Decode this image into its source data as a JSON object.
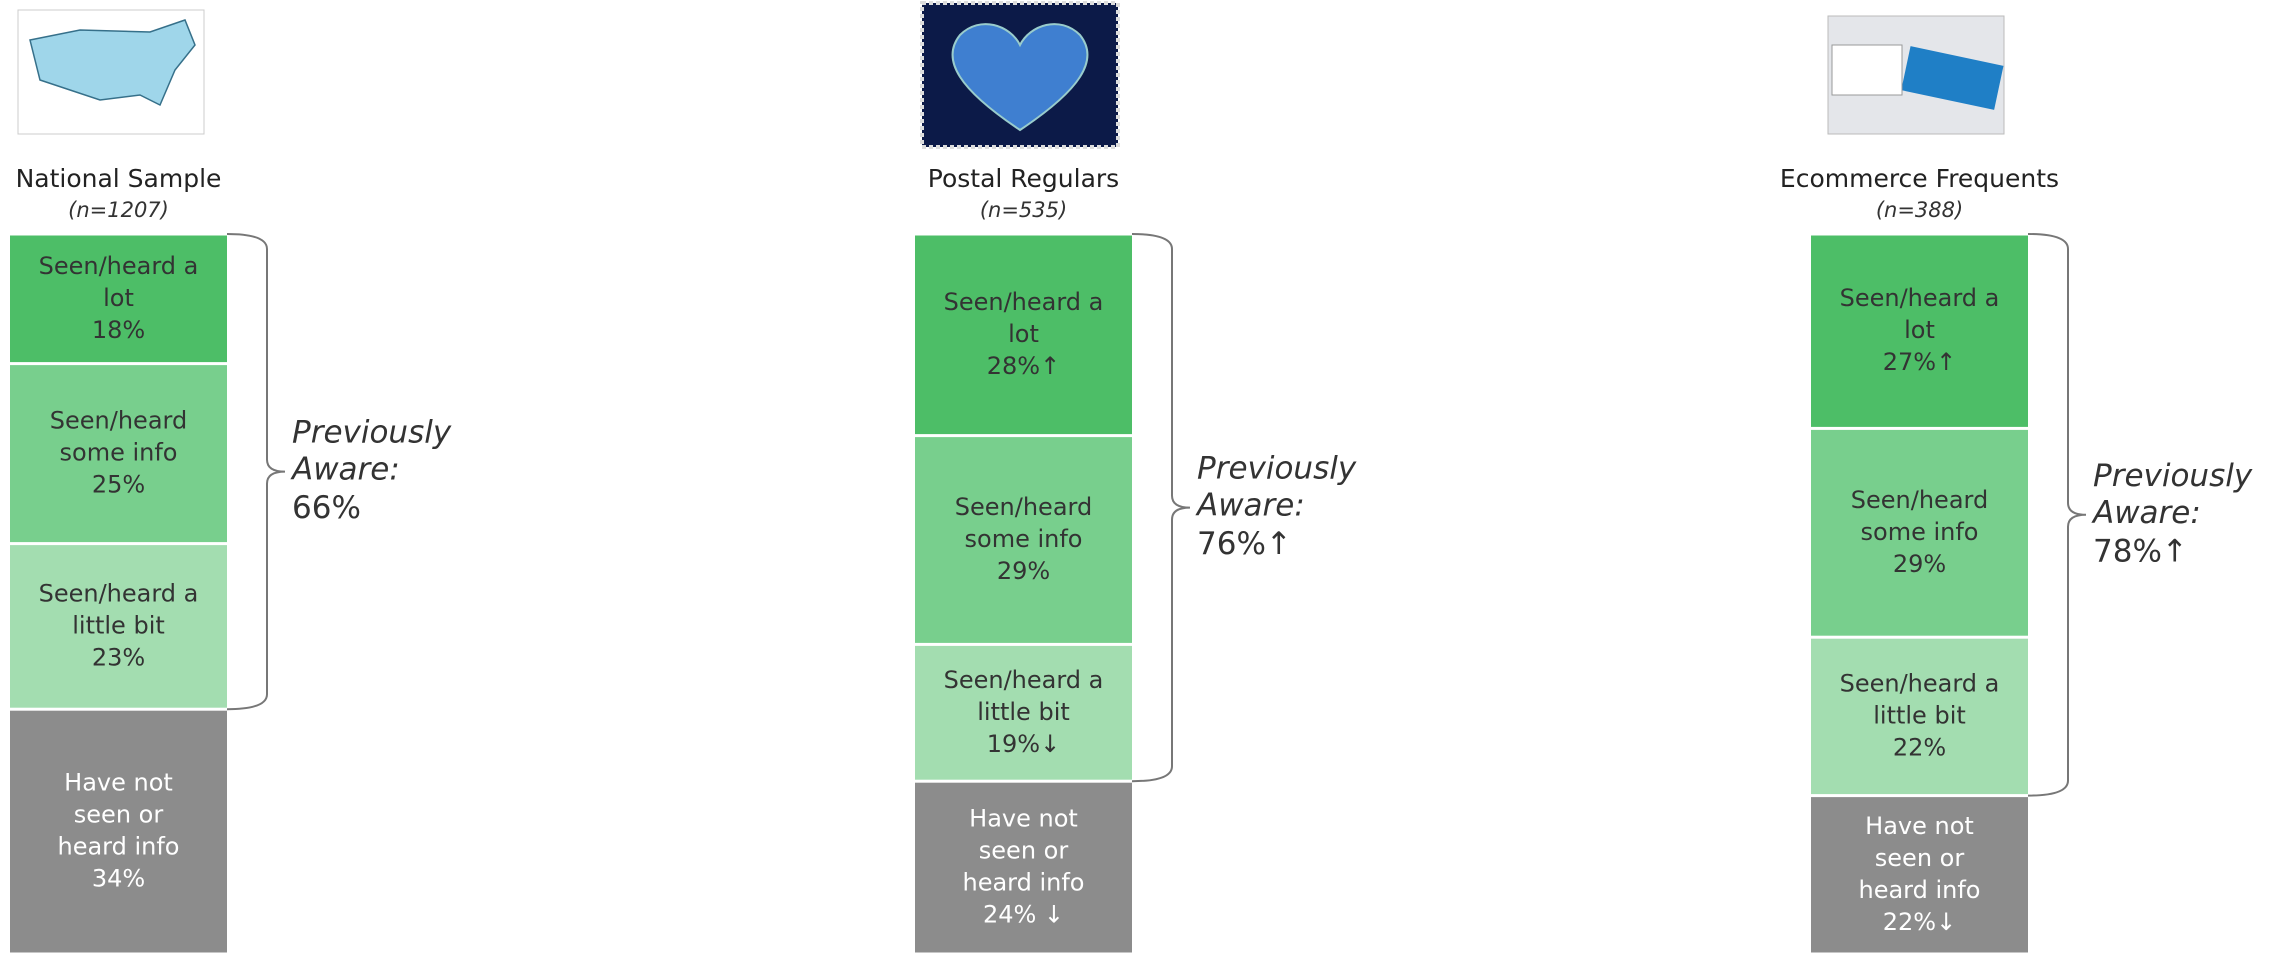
{
  "chart_data": [
    {
      "type": "stacked-bar",
      "title": "National Sample",
      "subtitle": "(n=1207)",
      "ylim": [
        0,
        100
      ],
      "series": [
        {
          "name": "Seen/heard a lot",
          "color": "#4dbe67",
          "values": [
            18
          ],
          "value_labels": [
            "18%"
          ]
        },
        {
          "name": "Seen/heard some info",
          "color": "#78cf8d",
          "values": [
            25
          ],
          "value_labels": [
            "25%"
          ]
        },
        {
          "name": "Seen/heard a little bit",
          "color": "#a3ddb0",
          "values": [
            23
          ],
          "value_labels": [
            "23%"
          ]
        },
        {
          "name": "Have not seen or heard info",
          "color": "#8c8c8c",
          "values": [
            34
          ],
          "value_labels": [
            "34%"
          ]
        }
      ],
      "annotation": {
        "label": "Previously Aware:",
        "value": 66,
        "value_label": "66%"
      }
    },
    {
      "type": "stacked-bar",
      "title": "Postal Regulars",
      "subtitle": "(n=535)",
      "ylim": [
        0,
        100
      ],
      "series": [
        {
          "name": "Seen/heard a lot",
          "color": "#4dbe67",
          "values": [
            28
          ],
          "value_labels": [
            "28%↑"
          ]
        },
        {
          "name": "Seen/heard some info",
          "color": "#78cf8d",
          "values": [
            29
          ],
          "value_labels": [
            "29%"
          ]
        },
        {
          "name": "Seen/heard a little bit",
          "color": "#a3ddb0",
          "values": [
            19
          ],
          "value_labels": [
            "19%↓"
          ]
        },
        {
          "name": "Have not seen or heard info",
          "color": "#8c8c8c",
          "values": [
            24
          ],
          "value_labels": [
            "24% ↓"
          ]
        }
      ],
      "annotation": {
        "label": "Previously Aware:",
        "value": 76,
        "value_label": "76%↑"
      }
    },
    {
      "type": "stacked-bar",
      "title": "Ecommerce Frequents",
      "subtitle": "(n=388)",
      "ylim": [
        0,
        100
      ],
      "series": [
        {
          "name": "Seen/heard a lot",
          "color": "#4dbe67",
          "values": [
            27
          ],
          "value_labels": [
            "27%↑"
          ]
        },
        {
          "name": "Seen/heard some info",
          "color": "#78cf8d",
          "values": [
            29
          ],
          "value_labels": [
            "29%"
          ]
        },
        {
          "name": "Seen/heard a little bit",
          "color": "#a3ddb0",
          "values": [
            22
          ],
          "value_labels": [
            "22%"
          ]
        },
        {
          "name": "Have not seen or heard info",
          "color": "#8c8c8c",
          "values": [
            22
          ],
          "value_labels": [
            "22%↓"
          ]
        }
      ],
      "annotation": {
        "label": "Previously Aware:",
        "value": 78,
        "value_label": "78%↑"
      }
    }
  ]
}
